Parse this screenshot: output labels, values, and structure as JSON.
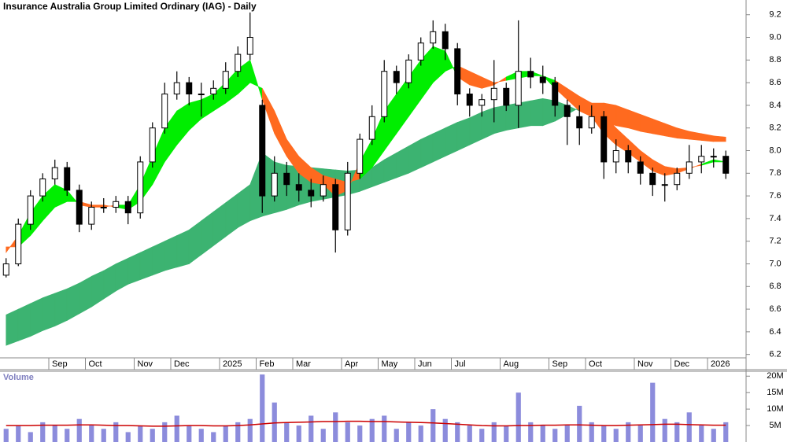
{
  "chart_data": [
    {
      "type": "candlestick",
      "title": "Insurance Australia Group Limited Ordinary (IAG) - Daily",
      "categories": [
        null,
        null,
        null,
        null,
        "Sep",
        null,
        null,
        "Oct",
        null,
        null,
        null,
        "Nov",
        null,
        null,
        "Dec",
        null,
        null,
        null,
        "2025",
        null,
        null,
        "Feb",
        null,
        null,
        "Mar",
        null,
        null,
        null,
        "Apr",
        null,
        null,
        "May",
        null,
        null,
        "Jun",
        null,
        null,
        "Jul",
        null,
        null,
        null,
        "Aug",
        null,
        null,
        null,
        "Sep",
        null,
        null,
        "Oct",
        null,
        null,
        null,
        "Nov",
        null,
        null,
        "Dec",
        null,
        null,
        "2026",
        null
      ],
      "open": [
        6.9,
        7.0,
        7.35,
        7.6,
        7.75,
        7.85,
        7.65,
        7.35,
        7.5,
        7.5,
        7.55,
        7.45,
        7.9,
        8.2,
        8.5,
        8.6,
        8.5,
        8.5,
        8.55,
        8.7,
        8.85,
        8.4,
        7.6,
        7.8,
        7.7,
        7.65,
        7.6,
        7.7,
        7.3,
        7.8,
        8.1,
        8.3,
        8.7,
        8.6,
        8.8,
        8.95,
        9.05,
        8.9,
        8.5,
        8.4,
        8.45,
        8.55,
        8.4,
        8.7,
        8.65,
        8.6,
        8.4,
        8.3,
        8.2,
        8.3,
        7.9,
        8.0,
        7.9,
        7.8,
        7.7,
        7.7,
        7.8,
        7.9,
        7.95,
        7.95
      ],
      "high": [
        7.05,
        7.4,
        7.65,
        7.8,
        7.92,
        7.9,
        7.7,
        7.55,
        7.58,
        7.6,
        7.6,
        7.95,
        8.25,
        8.6,
        8.7,
        8.65,
        8.6,
        8.62,
        8.78,
        8.92,
        9.22,
        8.45,
        7.95,
        7.9,
        7.8,
        7.75,
        7.78,
        7.75,
        7.9,
        8.15,
        8.4,
        8.8,
        8.75,
        8.85,
        9.0,
        9.15,
        9.12,
        8.95,
        8.55,
        8.5,
        8.8,
        8.6,
        9.15,
        8.82,
        8.75,
        8.65,
        8.45,
        8.4,
        8.4,
        8.35,
        8.1,
        8.05,
        7.95,
        7.85,
        7.8,
        7.85,
        8.05,
        8.05,
        8.02,
        8.0
      ],
      "low": [
        6.88,
        6.98,
        7.3,
        7.55,
        7.7,
        7.6,
        7.28,
        7.3,
        7.45,
        7.45,
        7.35,
        7.4,
        7.85,
        8.15,
        8.45,
        8.4,
        8.3,
        8.45,
        8.5,
        8.65,
        8.8,
        7.45,
        7.55,
        7.6,
        7.55,
        7.5,
        7.55,
        7.1,
        7.25,
        7.75,
        8.05,
        8.25,
        8.5,
        8.55,
        8.75,
        8.9,
        8.8,
        8.4,
        8.3,
        8.3,
        8.25,
        8.35,
        8.2,
        8.55,
        8.5,
        8.3,
        8.05,
        8.05,
        8.15,
        7.75,
        7.8,
        7.8,
        7.7,
        7.6,
        7.55,
        7.65,
        7.75,
        7.8,
        7.85,
        7.75
      ],
      "close": [
        7.0,
        7.35,
        7.6,
        7.75,
        7.85,
        7.65,
        7.35,
        7.5,
        7.5,
        7.55,
        7.45,
        7.9,
        8.2,
        8.5,
        8.6,
        8.5,
        8.5,
        8.55,
        8.7,
        8.85,
        9.0,
        7.6,
        7.8,
        7.7,
        7.65,
        7.6,
        7.7,
        7.3,
        7.8,
        8.1,
        8.3,
        8.7,
        8.6,
        8.8,
        8.95,
        9.05,
        8.9,
        8.5,
        8.4,
        8.45,
        8.55,
        8.4,
        8.7,
        8.65,
        8.6,
        8.4,
        8.3,
        8.2,
        8.3,
        7.9,
        8.0,
        7.9,
        7.8,
        7.7,
        7.7,
        7.8,
        7.9,
        7.95,
        7.95,
        7.8
      ],
      "up_color": "#ffffff",
      "down_color": "#000000",
      "edge_color": "#000000",
      "ribbons": [
        {
          "fast": [
            6.55,
            6.6,
            6.65,
            6.7,
            6.74,
            6.78,
            6.83,
            6.89,
            6.94,
            7.0,
            7.05,
            7.1,
            7.15,
            7.2,
            7.25,
            7.3,
            7.38,
            7.46,
            7.54,
            7.62,
            7.7,
            7.98,
            7.9,
            7.87,
            7.86,
            7.85,
            7.84,
            7.83,
            7.82,
            7.83,
            7.85,
            7.92,
            7.98,
            8.04,
            8.1,
            8.15,
            8.2,
            8.25,
            8.29,
            8.34,
            8.38,
            8.4,
            8.42,
            8.44,
            8.46,
            8.44,
            8.4,
            8.35,
            8.3,
            8.26,
            8.22,
            8.2,
            8.17,
            8.15,
            8.13,
            8.11,
            8.1,
            8.09,
            8.08,
            8.08
          ],
          "slow": [
            6.28,
            6.32,
            6.36,
            6.41,
            6.45,
            6.5,
            6.56,
            6.62,
            6.69,
            6.76,
            6.82,
            6.86,
            6.9,
            6.94,
            6.97,
            7.0,
            7.08,
            7.16,
            7.24,
            7.32,
            7.38,
            7.42,
            7.45,
            7.48,
            7.52,
            7.55,
            7.57,
            7.59,
            7.61,
            7.64,
            7.68,
            7.72,
            7.76,
            7.8,
            7.85,
            7.9,
            7.95,
            8.0,
            8.05,
            8.1,
            8.15,
            8.18,
            8.2,
            8.22,
            8.22,
            8.26,
            8.32,
            8.38,
            8.42,
            8.42,
            8.4,
            8.36,
            8.32,
            8.28,
            8.24,
            8.2,
            8.17,
            8.15,
            8.13,
            8.12
          ],
          "up_color": "#3cb371",
          "down_color": "#ff6a1f"
        },
        {
          "fast": [
            7.1,
            7.25,
            7.45,
            7.6,
            7.7,
            7.65,
            7.52,
            7.5,
            7.5,
            7.52,
            7.52,
            7.7,
            7.95,
            8.2,
            8.35,
            8.42,
            8.45,
            8.5,
            8.6,
            8.72,
            8.8,
            8.45,
            8.15,
            7.95,
            7.8,
            7.72,
            7.7,
            7.6,
            7.65,
            7.9,
            8.1,
            8.35,
            8.5,
            8.65,
            8.8,
            8.92,
            8.88,
            8.65,
            8.58,
            8.55,
            8.58,
            8.65,
            8.7,
            8.7,
            8.66,
            8.55,
            8.45,
            8.35,
            8.3,
            8.15,
            8.05,
            7.98,
            7.9,
            7.82,
            7.78,
            7.8,
            7.84,
            7.88,
            7.92,
            7.9
          ],
          "slow": [
            7.15,
            7.15,
            7.25,
            7.38,
            7.5,
            7.55,
            7.55,
            7.52,
            7.52,
            7.5,
            7.48,
            7.55,
            7.7,
            7.9,
            8.05,
            8.18,
            8.28,
            8.35,
            8.42,
            8.5,
            8.6,
            8.55,
            8.35,
            8.1,
            7.95,
            7.85,
            7.78,
            7.75,
            7.72,
            7.75,
            7.85,
            8.0,
            8.15,
            8.3,
            8.45,
            8.6,
            8.7,
            8.75,
            8.7,
            8.65,
            8.6,
            8.62,
            8.64,
            8.66,
            8.66,
            8.62,
            8.55,
            8.48,
            8.42,
            8.32,
            8.2,
            8.1,
            8.0,
            7.92,
            7.86,
            7.84,
            7.85,
            7.87,
            7.9,
            7.9
          ],
          "up_color": "#00ee00",
          "down_color": "#ff6a1f"
        }
      ],
      "ylim": [
        6.17,
        9.33
      ],
      "yticks": [
        {
          "value": 9.2,
          "label": "9.2"
        },
        {
          "value": 9,
          "label": "9.0"
        },
        8.8,
        8.6,
        8.4,
        8.2,
        {
          "value": 8,
          "label": "8.0"
        },
        7.8,
        7.6,
        7.4,
        7.2,
        {
          "value": 7,
          "label": "7.0"
        },
        6.8,
        6.6,
        6.4,
        6.2
      ]
    },
    {
      "type": "bar",
      "title": "Volume",
      "values": [
        4,
        5,
        3,
        6,
        5,
        4,
        7,
        5,
        4,
        6,
        3,
        5,
        4,
        6,
        8,
        5,
        4,
        3,
        5,
        6,
        7,
        20.5,
        12,
        6,
        5,
        8,
        4,
        9,
        6,
        5,
        7,
        8,
        4,
        6,
        5,
        10,
        7,
        6,
        5,
        4,
        6,
        5,
        15,
        6,
        5,
        4,
        5,
        11,
        6,
        5,
        4,
        6,
        5,
        18,
        7,
        6,
        9,
        5,
        4,
        6
      ],
      "color": "#8c8cdc",
      "ma": [
        5,
        5,
        5,
        5.1,
        5.1,
        5.1,
        5.2,
        5.2,
        5.1,
        5,
        5,
        4.9,
        4.8,
        4.8,
        4.9,
        5,
        5,
        4.9,
        4.9,
        5,
        5.2,
        5.5,
        5.8,
        5.9,
        6,
        6.1,
        6.2,
        6.2,
        6.3,
        6.3,
        6.2,
        6.2,
        6.1,
        6,
        5.9,
        5.8,
        5.6,
        5.4,
        5.2,
        5,
        4.9,
        4.9,
        5,
        5,
        5.1,
        5.1,
        5.2,
        5.2,
        5.1,
        5,
        5,
        5.1,
        5.2,
        5.3,
        5.4,
        5.4,
        5.3,
        5.2,
        5.1,
        5.1
      ],
      "ma_color": "#cc0000",
      "ylim": [
        0,
        21.5
      ],
      "yticks": [
        {
          "value": 20,
          "label": "20M"
        },
        {
          "value": 15,
          "label": "15M"
        },
        {
          "value": 10,
          "label": "10M"
        },
        {
          "value": 5,
          "label": "5M"
        }
      ]
    }
  ]
}
